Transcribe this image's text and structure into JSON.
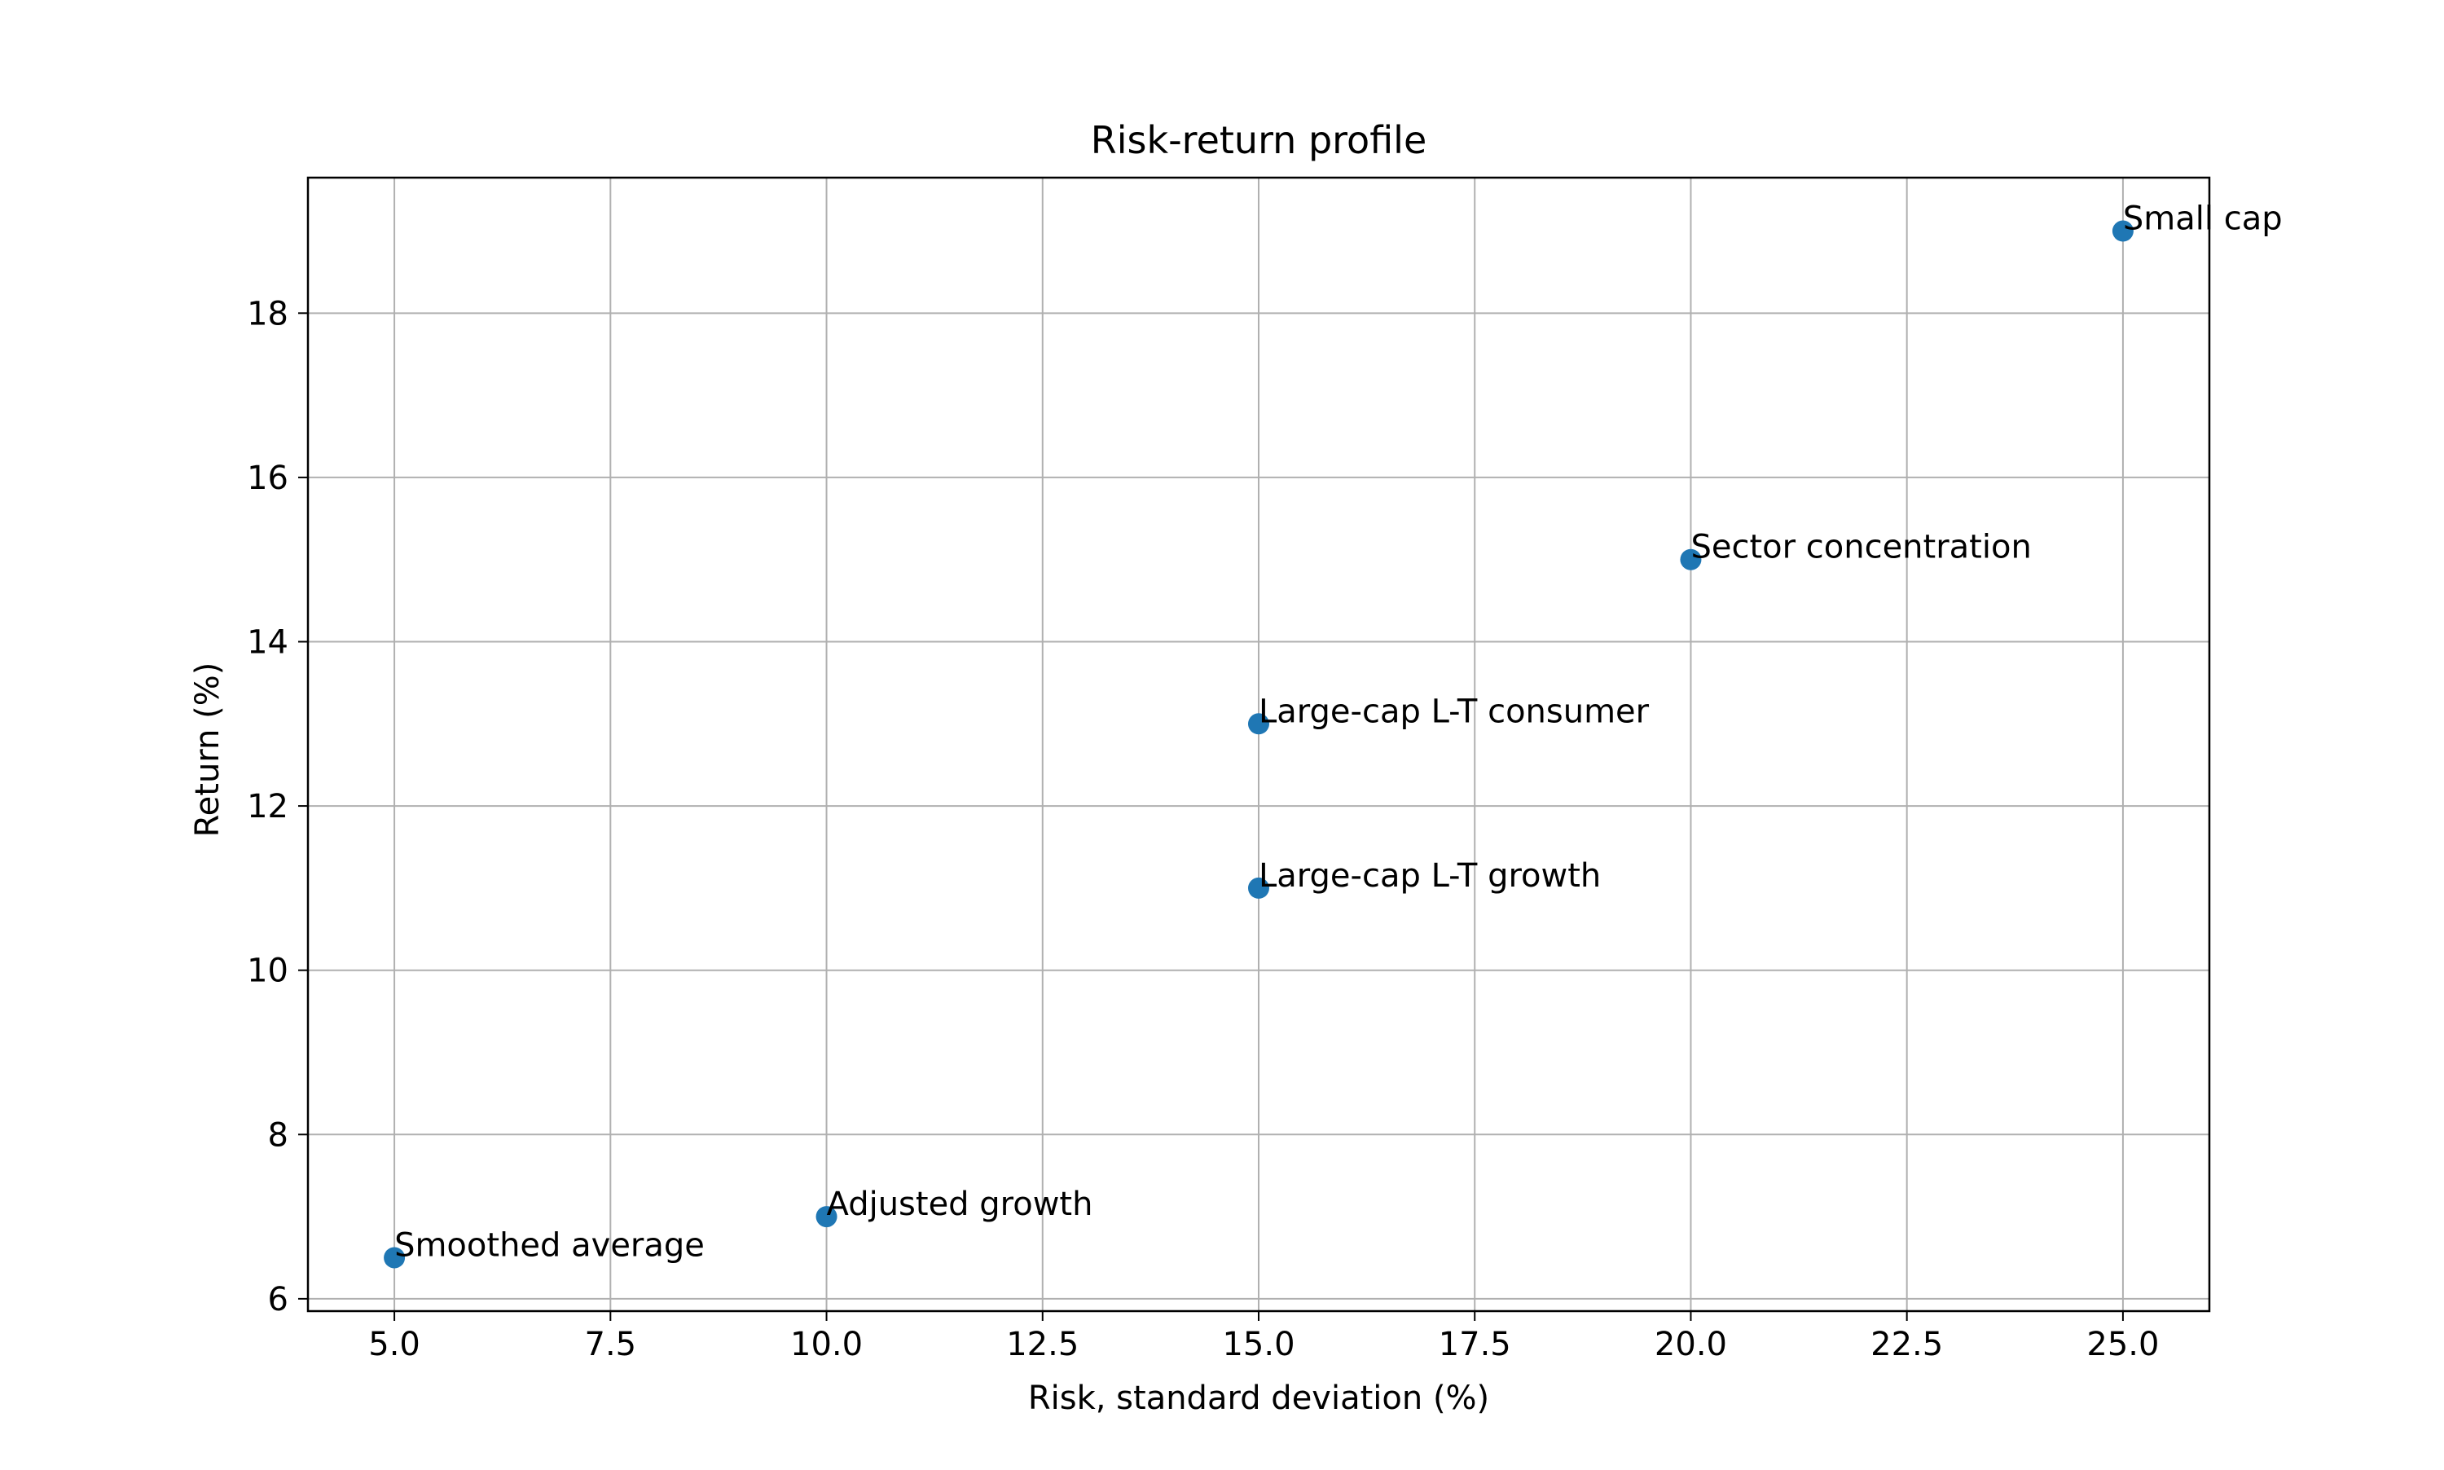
{
  "chart_data": {
    "type": "scatter",
    "title": "Risk-return profile",
    "xlabel": "Risk, standard deviation (%)",
    "ylabel": "Return (%)",
    "xlim": [
      4.0,
      26.0
    ],
    "ylim": [
      5.85,
      19.65
    ],
    "xticks": [
      "5.0",
      "7.5",
      "10.0",
      "12.5",
      "15.0",
      "17.5",
      "20.0",
      "22.5",
      "25.0"
    ],
    "yticks": [
      "6",
      "8",
      "10",
      "12",
      "14",
      "16",
      "18"
    ],
    "grid": true,
    "marker_color": "#1f77b4",
    "points": [
      {
        "label": "Smoothed average",
        "x": 5,
        "y": 6.5
      },
      {
        "label": "Adjusted growth",
        "x": 10,
        "y": 7
      },
      {
        "label": "Large-cap L-T growth",
        "x": 15,
        "y": 11
      },
      {
        "label": "Large-cap L-T consumer",
        "x": 15,
        "y": 13
      },
      {
        "label": "Sector concentration",
        "x": 20,
        "y": 15
      },
      {
        "label": "Small cap",
        "x": 25,
        "y": 19
      }
    ]
  }
}
